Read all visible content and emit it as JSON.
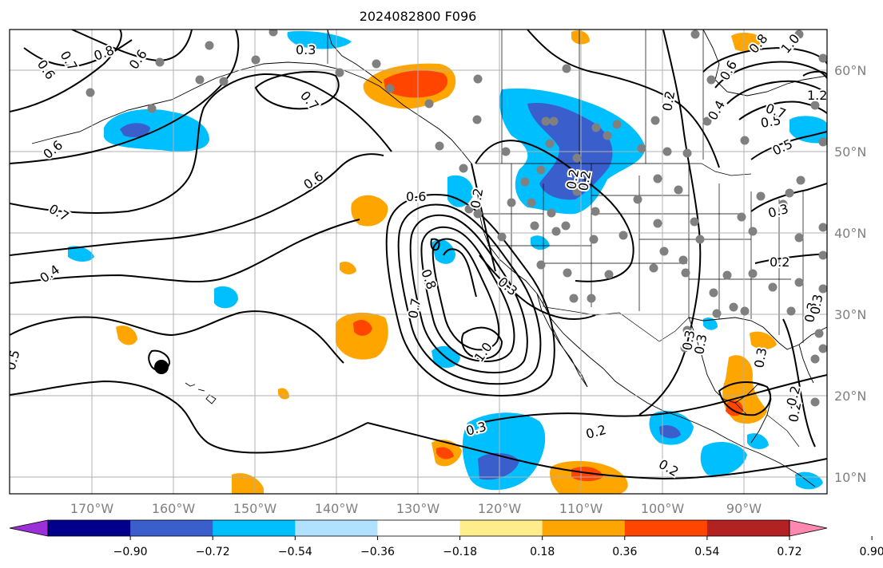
{
  "title": "2024082800 F096",
  "colors": {
    "ocean_bg": "#ffffff",
    "grid": "#b0b0b0",
    "contour": "#000000",
    "station": "#808080",
    "palette": [
      "#9b30d9",
      "#00008b",
      "#3a5fcd",
      "#00bfff",
      "#b0e2ff",
      "#ffffff",
      "#ffec8b",
      "#ffa500",
      "#ff4500",
      "#b22222",
      "#ff88b0"
    ]
  },
  "longitude_labels": [
    "170°W",
    "160°W",
    "150°W",
    "140°W",
    "130°W",
    "120°W",
    "110°W",
    "100°W",
    "90°W"
  ],
  "latitude_labels": [
    "60°N",
    "50°N",
    "40°N",
    "30°N",
    "20°N",
    "10°N"
  ],
  "colorbar": {
    "ticks": [
      "−0.90",
      "−0.72",
      "−0.54",
      "−0.36",
      "−0.18",
      "0.18",
      "0.36",
      "0.54",
      "0.72",
      "0.90"
    ],
    "colors": [
      "#9b30d9",
      "#00008b",
      "#3a5fcd",
      "#00bfff",
      "#b0e2ff",
      "#ffffff",
      "#ffec8b",
      "#ffa500",
      "#ff4500",
      "#b22222",
      "#ff88b0"
    ]
  },
  "contour_labels": [
    {
      "text": "0.6"
    },
    {
      "text": "0.7"
    },
    {
      "text": "0.8"
    },
    {
      "text": "0.6"
    },
    {
      "text": "0.3"
    },
    {
      "text": "0.7"
    },
    {
      "text": "0.6"
    },
    {
      "text": "0.6"
    },
    {
      "text": "0.7"
    },
    {
      "text": "0.4"
    },
    {
      "text": "0.5"
    },
    {
      "text": "0.6"
    },
    {
      "text": "0.8"
    },
    {
      "text": "0.7"
    },
    {
      "text": "1.0"
    },
    {
      "text": "0.3"
    },
    {
      "text": "0.2"
    },
    {
      "text": "0.2"
    },
    {
      "text": "0.2"
    },
    {
      "text": "0.3"
    },
    {
      "text": "0.2"
    },
    {
      "text": "0.2"
    },
    {
      "text": "0.3"
    },
    {
      "text": "0.3"
    },
    {
      "text": "0.3"
    },
    {
      "text": "0.2"
    },
    {
      "text": "0.2"
    },
    {
      "text": "0.5"
    },
    {
      "text": "0.7"
    },
    {
      "text": "1.0"
    },
    {
      "text": "1.2"
    },
    {
      "text": "0.6"
    },
    {
      "text": "0.8"
    },
    {
      "text": "0.4"
    },
    {
      "text": "0.5"
    },
    {
      "text": "0.2"
    },
    {
      "text": "0.3"
    },
    {
      "text": "0.3"
    },
    {
      "text": "0.3"
    },
    {
      "text": "0.2"
    }
  ]
}
